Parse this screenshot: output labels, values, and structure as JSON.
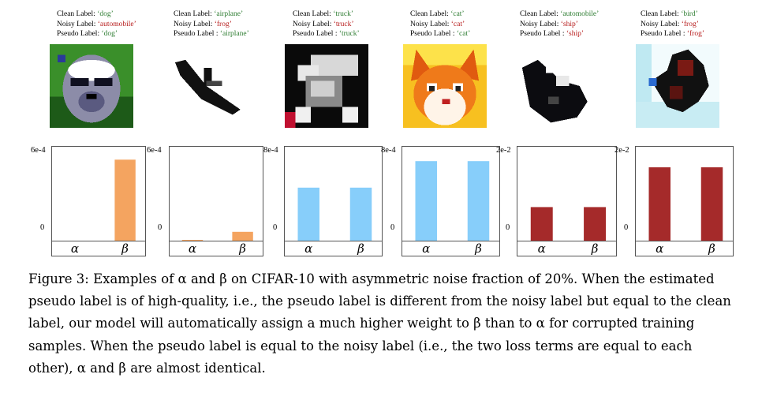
{
  "panels": [
    {
      "clean_label_prefix": "Clean Label: ",
      "clean": "‘dog’",
      "noisy_label_prefix": "Noisy Label: ",
      "noisy": "‘automobile’",
      "pseudo_label_prefix": "Pseudo Label: ",
      "pseudo": "‘dog’",
      "pseudo_status": "ok",
      "image": "cifar-dog-thumbnail"
    },
    {
      "clean_label_prefix": "Clean Label: ",
      "clean": "‘airplane’",
      "noisy_label_prefix": "Noisy Label: ",
      "noisy": "‘frog’",
      "pseudo_label_prefix": "Pseudo Label : ",
      "pseudo": "‘airplane’",
      "pseudo_status": "ok",
      "image": "cifar-airplane-thumbnail"
    },
    {
      "clean_label_prefix": "Clean Label: ",
      "clean": "‘truck’",
      "noisy_label_prefix": "Noisy Label: ",
      "noisy": "‘truck’",
      "pseudo_label_prefix": "Pseudo Label : ",
      "pseudo": "‘truck’",
      "pseudo_status": "ok",
      "image": "cifar-truck-thumbnail"
    },
    {
      "clean_label_prefix": "Clean Label: ",
      "clean": "‘cat’",
      "noisy_label_prefix": "Noisy Label: ",
      "noisy": "‘cat’",
      "pseudo_label_prefix": "Pseudo Label : ",
      "pseudo": "‘cat’",
      "pseudo_status": "ok",
      "image": "cifar-cat-thumbnail"
    },
    {
      "clean_label_prefix": "Clean Label: ",
      "clean": "‘automobile’",
      "noisy_label_prefix": "Noisy Label: ",
      "noisy": "‘ship’",
      "pseudo_label_prefix": "Pseudo Label : ",
      "pseudo": "‘ship’",
      "pseudo_status": "bad",
      "image": "cifar-automobile-thumbnail"
    },
    {
      "clean_label_prefix": "Clean Label: ",
      "clean": "‘bird’",
      "noisy_label_prefix": "Noisy Label: ",
      "noisy": "‘frog’",
      "pseudo_label_prefix": "Pseudo Label : ",
      "pseudo": "‘frog’",
      "pseudo_status": "bad",
      "image": "cifar-bird-thumbnail"
    }
  ],
  "chart_data": [
    {
      "type": "bar",
      "categories": [
        "α",
        "β"
      ],
      "values": [
        0,
        0.00055
      ],
      "ylim": [
        0,
        0.0006
      ],
      "yticks": [
        "0",
        "6e-4"
      ],
      "color": "#f4a460",
      "grid": false
    },
    {
      "type": "bar",
      "categories": [
        "α",
        "β"
      ],
      "values": [
        5e-07,
        6e-05
      ],
      "ylim": [
        0,
        0.0006
      ],
      "yticks": [
        "0",
        "6e-4"
      ],
      "color": "#f4a460",
      "grid": false
    },
    {
      "type": "bar",
      "categories": [
        "α",
        "β"
      ],
      "values": [
        0.00048,
        0.00048
      ],
      "ylim": [
        0,
        0.0008
      ],
      "yticks": [
        "0",
        "8e-4"
      ],
      "color": "#87cefa",
      "grid": false
    },
    {
      "type": "bar",
      "categories": [
        "α",
        "β"
      ],
      "values": [
        0.00072,
        0.00072
      ],
      "ylim": [
        0,
        0.0008
      ],
      "yticks": [
        "0",
        "8e-4"
      ],
      "color": "#87cefa",
      "grid": false
    },
    {
      "type": "bar",
      "categories": [
        "α",
        "β"
      ],
      "values": [
        0.0076,
        0.0076
      ],
      "ylim": [
        0,
        0.02
      ],
      "yticks": [
        "0",
        "2e-2"
      ],
      "color": "#a52a2a",
      "grid": false
    },
    {
      "type": "bar",
      "categories": [
        "α",
        "β"
      ],
      "values": [
        0.0166,
        0.0166
      ],
      "ylim": [
        0,
        0.02
      ],
      "yticks": [
        "0",
        "2e-2"
      ],
      "color": "#a52a2a",
      "grid": false
    }
  ],
  "caption": {
    "label": "Figure 3:",
    "text": "Examples of α and β on CIFAR-10 with asymmetric noise fraction of 20%. When the estimated pseudo label is of high-quality, i.e., the pseudo label is different from the noisy label but equal to the clean label, our model will automatically assign a much higher weight to β than to α for corrupted training samples. When the pseudo label is equal to the noisy label (i.e., the two loss terms are equal to each other), α and β are almost identical."
  }
}
